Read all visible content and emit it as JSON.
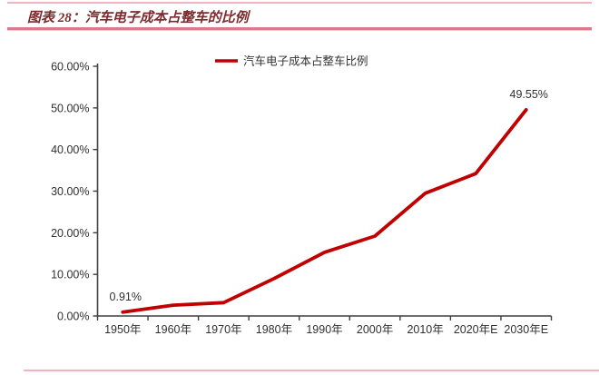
{
  "header": {
    "title": "图表 28：汽车电子成本占整车的比例"
  },
  "colors": {
    "series_red": "#C00000",
    "title_maroon": "#7D2A2E",
    "rule_pink_light": "#F2B3BF",
    "rule_pink_dark": "#D97B8A",
    "axis_gray": "#3F3F3F",
    "label_gray": "#303030"
  },
  "chart_data": {
    "type": "line",
    "title": "图表 28：汽车电子成本占整车的比例",
    "legend_position": "top",
    "grid": false,
    "categories": [
      "1950年",
      "1960年",
      "1970年",
      "1980年",
      "1990年",
      "2000年",
      "2010年",
      "2020年E",
      "2030年E"
    ],
    "series": [
      {
        "name": "汽车电子成本占整车比例",
        "color": "#C00000",
        "values": [
          0.91,
          2.6,
          3.2,
          9.0,
          15.3,
          19.2,
          29.5,
          34.2,
          49.55
        ]
      }
    ],
    "ylim": [
      0,
      60
    ],
    "y_ticks": [
      "0.00%",
      "10.00%",
      "20.00%",
      "30.00%",
      "40.00%",
      "50.00%",
      "60.00%"
    ],
    "xlabel": "",
    "ylabel": "",
    "annotations": [
      {
        "text": "0.91%",
        "category": "1950年",
        "value": 0.91
      },
      {
        "text": "49.55%",
        "category": "2030年E",
        "value": 49.55
      }
    ]
  }
}
